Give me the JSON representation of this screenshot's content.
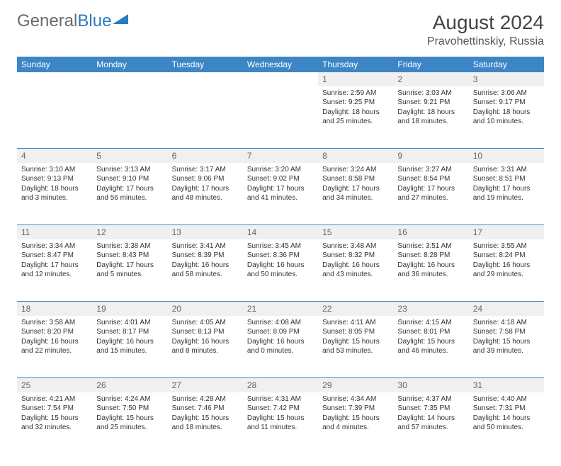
{
  "logo": {
    "text1": "General",
    "text2": "Blue"
  },
  "title": "August 2024",
  "location": "Pravohettinskiy, Russia",
  "colors": {
    "header_bg": "#3d86c6",
    "header_text": "#ffffff",
    "daynum_bg": "#f0f0f0",
    "border": "#3d86c6",
    "logo_gray": "#6b6b6b",
    "logo_blue": "#2b7bbd"
  },
  "weekdays": [
    "Sunday",
    "Monday",
    "Tuesday",
    "Wednesday",
    "Thursday",
    "Friday",
    "Saturday"
  ],
  "weeks": [
    {
      "nums": [
        "",
        "",
        "",
        "",
        "1",
        "2",
        "3"
      ],
      "cells": [
        "",
        "",
        "",
        "",
        "Sunrise: 2:59 AM\nSunset: 9:25 PM\nDaylight: 18 hours and 25 minutes.",
        "Sunrise: 3:03 AM\nSunset: 9:21 PM\nDaylight: 18 hours and 18 minutes.",
        "Sunrise: 3:06 AM\nSunset: 9:17 PM\nDaylight: 18 hours and 10 minutes."
      ]
    },
    {
      "nums": [
        "4",
        "5",
        "6",
        "7",
        "8",
        "9",
        "10"
      ],
      "cells": [
        "Sunrise: 3:10 AM\nSunset: 9:13 PM\nDaylight: 18 hours and 3 minutes.",
        "Sunrise: 3:13 AM\nSunset: 9:10 PM\nDaylight: 17 hours and 56 minutes.",
        "Sunrise: 3:17 AM\nSunset: 9:06 PM\nDaylight: 17 hours and 48 minutes.",
        "Sunrise: 3:20 AM\nSunset: 9:02 PM\nDaylight: 17 hours and 41 minutes.",
        "Sunrise: 3:24 AM\nSunset: 8:58 PM\nDaylight: 17 hours and 34 minutes.",
        "Sunrise: 3:27 AM\nSunset: 8:54 PM\nDaylight: 17 hours and 27 minutes.",
        "Sunrise: 3:31 AM\nSunset: 8:51 PM\nDaylight: 17 hours and 19 minutes."
      ]
    },
    {
      "nums": [
        "11",
        "12",
        "13",
        "14",
        "15",
        "16",
        "17"
      ],
      "cells": [
        "Sunrise: 3:34 AM\nSunset: 8:47 PM\nDaylight: 17 hours and 12 minutes.",
        "Sunrise: 3:38 AM\nSunset: 8:43 PM\nDaylight: 17 hours and 5 minutes.",
        "Sunrise: 3:41 AM\nSunset: 8:39 PM\nDaylight: 16 hours and 58 minutes.",
        "Sunrise: 3:45 AM\nSunset: 8:36 PM\nDaylight: 16 hours and 50 minutes.",
        "Sunrise: 3:48 AM\nSunset: 8:32 PM\nDaylight: 16 hours and 43 minutes.",
        "Sunrise: 3:51 AM\nSunset: 8:28 PM\nDaylight: 16 hours and 36 minutes.",
        "Sunrise: 3:55 AM\nSunset: 8:24 PM\nDaylight: 16 hours and 29 minutes."
      ]
    },
    {
      "nums": [
        "18",
        "19",
        "20",
        "21",
        "22",
        "23",
        "24"
      ],
      "cells": [
        "Sunrise: 3:58 AM\nSunset: 8:20 PM\nDaylight: 16 hours and 22 minutes.",
        "Sunrise: 4:01 AM\nSunset: 8:17 PM\nDaylight: 16 hours and 15 minutes.",
        "Sunrise: 4:05 AM\nSunset: 8:13 PM\nDaylight: 16 hours and 8 minutes.",
        "Sunrise: 4:08 AM\nSunset: 8:09 PM\nDaylight: 16 hours and 0 minutes.",
        "Sunrise: 4:11 AM\nSunset: 8:05 PM\nDaylight: 15 hours and 53 minutes.",
        "Sunrise: 4:15 AM\nSunset: 8:01 PM\nDaylight: 15 hours and 46 minutes.",
        "Sunrise: 4:18 AM\nSunset: 7:58 PM\nDaylight: 15 hours and 39 minutes."
      ]
    },
    {
      "nums": [
        "25",
        "26",
        "27",
        "28",
        "29",
        "30",
        "31"
      ],
      "cells": [
        "Sunrise: 4:21 AM\nSunset: 7:54 PM\nDaylight: 15 hours and 32 minutes.",
        "Sunrise: 4:24 AM\nSunset: 7:50 PM\nDaylight: 15 hours and 25 minutes.",
        "Sunrise: 4:28 AM\nSunset: 7:46 PM\nDaylight: 15 hours and 18 minutes.",
        "Sunrise: 4:31 AM\nSunset: 7:42 PM\nDaylight: 15 hours and 11 minutes.",
        "Sunrise: 4:34 AM\nSunset: 7:39 PM\nDaylight: 15 hours and 4 minutes.",
        "Sunrise: 4:37 AM\nSunset: 7:35 PM\nDaylight: 14 hours and 57 minutes.",
        "Sunrise: 4:40 AM\nSunset: 7:31 PM\nDaylight: 14 hours and 50 minutes."
      ]
    }
  ]
}
